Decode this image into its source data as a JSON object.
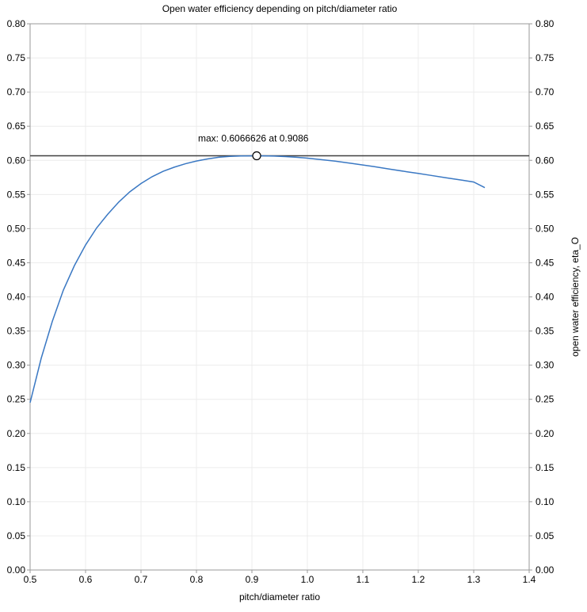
{
  "chart_data": {
    "type": "line",
    "title": "Open water efficiency depending on pitch/diameter ratio",
    "xlabel": "pitch/diameter ratio",
    "ylabel_right": "open water efficiency, eta_O",
    "xlim": [
      0.5,
      1.4
    ],
    "ylim": [
      0.0,
      0.8
    ],
    "x_ticks": [
      "0.5",
      "0.6",
      "0.7",
      "0.8",
      "0.9",
      "1.0",
      "1.1",
      "1.2",
      "1.3",
      "1.4"
    ],
    "y_ticks": [
      "0.00",
      "0.05",
      "0.10",
      "0.15",
      "0.20",
      "0.25",
      "0.30",
      "0.35",
      "0.40",
      "0.45",
      "0.50",
      "0.55",
      "0.60",
      "0.65",
      "0.70",
      "0.75",
      "0.80"
    ],
    "grid": true,
    "series": [
      {
        "color": "#3a78c3",
        "x": [
          0.5,
          0.52,
          0.54,
          0.56,
          0.58,
          0.6,
          0.62,
          0.64,
          0.66,
          0.68,
          0.7,
          0.72,
          0.74,
          0.76,
          0.78,
          0.8,
          0.82,
          0.84,
          0.86,
          0.88,
          0.9,
          0.9086,
          0.92,
          0.94,
          0.96,
          0.98,
          1.0,
          1.02,
          1.05,
          1.08,
          1.1,
          1.12,
          1.15,
          1.18,
          1.2,
          1.22,
          1.25,
          1.28,
          1.3,
          1.32
        ],
        "y": [
          0.245,
          0.31,
          0.364,
          0.41,
          0.446,
          0.476,
          0.501,
          0.521,
          0.539,
          0.554,
          0.566,
          0.576,
          0.584,
          0.59,
          0.595,
          0.599,
          0.602,
          0.6045,
          0.6058,
          0.6064,
          0.6066,
          0.6066626,
          0.6065,
          0.6062,
          0.6055,
          0.6045,
          0.6032,
          0.6015,
          0.5988,
          0.5955,
          0.5932,
          0.5908,
          0.587,
          0.5832,
          0.5808,
          0.5783,
          0.5745,
          0.5708,
          0.5682,
          0.56
        ]
      }
    ],
    "annotation": {
      "text": "max: 0.6066626 at 0.9086",
      "x": 0.9086,
      "y": 0.6066626
    },
    "hline_y": 0.6066626
  }
}
